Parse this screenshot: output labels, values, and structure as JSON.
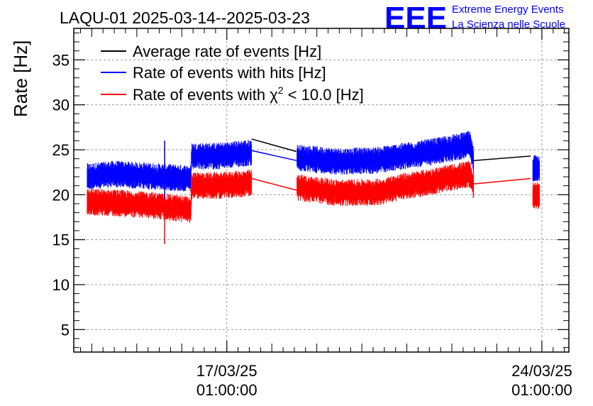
{
  "chart_data": {
    "type": "line",
    "title": "LAQU-01 2025-03-14--2025-03-23",
    "ylabel": "Rate [Hz]",
    "xlabel": "",
    "ylim": [
      2.5,
      38.5
    ],
    "xlim_days": [
      -3.4,
      7.6
    ],
    "y_ticks": [
      5,
      10,
      15,
      20,
      25,
      30,
      35
    ],
    "y_tick_labels": [
      "5",
      "10",
      "15",
      "20",
      "25",
      "30",
      "35"
    ],
    "x_ticks": [
      {
        "day": 0,
        "date": "17/03/25",
        "time": "01:00:00"
      },
      {
        "day": 7,
        "date": "24/03/25",
        "time": "01:00:00"
      }
    ],
    "grid": true,
    "legend_position": "top-left",
    "series": [
      {
        "name": "Average rate of events [Hz]",
        "color": "#000000",
        "noise": 0,
        "points": [
          [
            3.7,
            23.8
          ],
          [
            6.75,
            24.3
          ]
        ],
        "segments": [
          [
            0.55,
            26.2,
            1.55,
            24.8
          ],
          [
            5.48,
            23.8,
            6.75,
            24.3
          ]
        ]
      },
      {
        "name": "Rate of events with hits [Hz]",
        "color": "#0000ff",
        "noise": 1.0,
        "points": [
          [
            -3.1,
            22.0
          ],
          [
            -2.5,
            22.3
          ],
          [
            -1.5,
            22.0
          ],
          [
            -0.8,
            21.8
          ],
          [
            -0.78,
            24.3
          ],
          [
            -0.2,
            24.3
          ],
          [
            0.55,
            24.7
          ],
          [
            0.56,
            24.9
          ],
          [
            1.55,
            23.8
          ],
          [
            1.56,
            24.1
          ],
          [
            2.5,
            23.7
          ],
          [
            3.3,
            23.8
          ],
          [
            3.8,
            24.2
          ],
          [
            4.6,
            24.8
          ],
          [
            5.4,
            25.6
          ],
          [
            5.48,
            23.8
          ],
          [
            6.75,
            24.3
          ],
          [
            6.8,
            23.0
          ],
          [
            6.95,
            23.0
          ]
        ],
        "segments": [
          [
            0.56,
            24.9,
            1.55,
            23.8
          ]
        ]
      },
      {
        "name": "Rate of events with χ² < 10.0 [Hz]",
        "color": "#ff0000",
        "noise": 1.0,
        "points": [
          [
            -3.1,
            19.2
          ],
          [
            -2.5,
            19.1
          ],
          [
            -1.6,
            18.8
          ],
          [
            -0.8,
            18.3
          ],
          [
            -0.78,
            21.0
          ],
          [
            -0.2,
            21.0
          ],
          [
            0.55,
            21.3
          ],
          [
            0.56,
            21.8
          ],
          [
            1.55,
            20.5
          ],
          [
            1.56,
            20.8
          ],
          [
            2.5,
            20.2
          ],
          [
            3.4,
            20.3
          ],
          [
            3.8,
            20.8
          ],
          [
            4.6,
            21.5
          ],
          [
            5.4,
            22.3
          ],
          [
            5.48,
            21.0
          ],
          [
            6.75,
            21.8
          ],
          [
            6.8,
            19.9
          ],
          [
            6.95,
            19.9
          ]
        ],
        "segments": [
          [
            0.56,
            21.8,
            1.55,
            20.5
          ],
          [
            5.48,
            21.2,
            6.75,
            21.8
          ]
        ]
      }
    ],
    "spikes": [
      {
        "x": -1.38,
        "y_from": 14.5,
        "y_to": 26.0,
        "color": "#ff0000"
      },
      {
        "x": -1.38,
        "y_from": 19.5,
        "y_to": 26.0,
        "color": "#0000ff"
      }
    ]
  },
  "legend": {
    "entry_black": "Average rate of events [Hz]",
    "entry_blue": "Rate of events with hits [Hz]",
    "entry_red_prefix": "Rate of events with ",
    "entry_red_chi": "χ",
    "entry_red_sup": "2",
    "entry_red_suffix": " < 10.0 [Hz]"
  },
  "logo": {
    "mark": "EEE",
    "line1": "Extreme Energy Events",
    "line2": "La Scienza nelle Scuole",
    "color": "#0000ff"
  }
}
